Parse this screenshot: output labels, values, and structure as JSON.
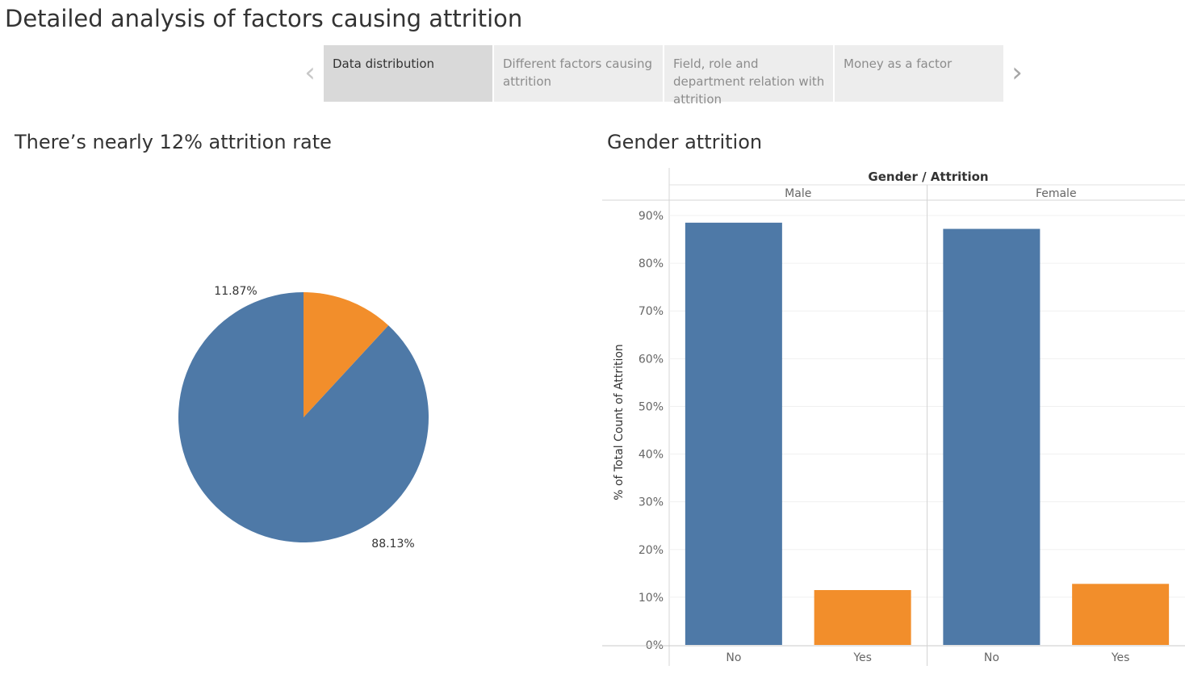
{
  "page": {
    "title": "Detailed analysis of factors causing attrition"
  },
  "story": {
    "tabs": [
      {
        "label": "Data distribution",
        "active": true
      },
      {
        "label": "Different factors causing attrition",
        "active": false
      },
      {
        "label": "Field, role and department relation with attrition",
        "active": false
      },
      {
        "label": "Money as a factor",
        "active": false
      }
    ],
    "prev_icon": "chevron-left-icon",
    "next_icon": "chevron-right-icon"
  },
  "colors": {
    "no": "#4e79a7",
    "yes": "#f28e2b"
  },
  "chart_data": [
    {
      "type": "pie",
      "title": "There’s nearly 12% attrition rate",
      "slices": [
        {
          "category": "No",
          "value": 88.13,
          "label": "88.13%",
          "color": "#4e79a7"
        },
        {
          "category": "Yes",
          "value": 11.87,
          "label": "11.87%",
          "color": "#f28e2b"
        }
      ]
    },
    {
      "type": "bar",
      "title": "Gender attrition",
      "header": "Gender / Attrition",
      "ylabel": "% of Total Count of Attrition",
      "ylim": [
        0,
        90
      ],
      "yticks": [
        "0%",
        "10%",
        "20%",
        "30%",
        "40%",
        "50%",
        "60%",
        "70%",
        "80%",
        "90%"
      ],
      "grid": true,
      "panels": [
        {
          "name": "Male",
          "categories": [
            "No",
            "Yes"
          ],
          "values": [
            88.5,
            11.5
          ]
        },
        {
          "name": "Female",
          "categories": [
            "No",
            "Yes"
          ],
          "values": [
            87.2,
            12.8
          ]
        }
      ]
    }
  ]
}
